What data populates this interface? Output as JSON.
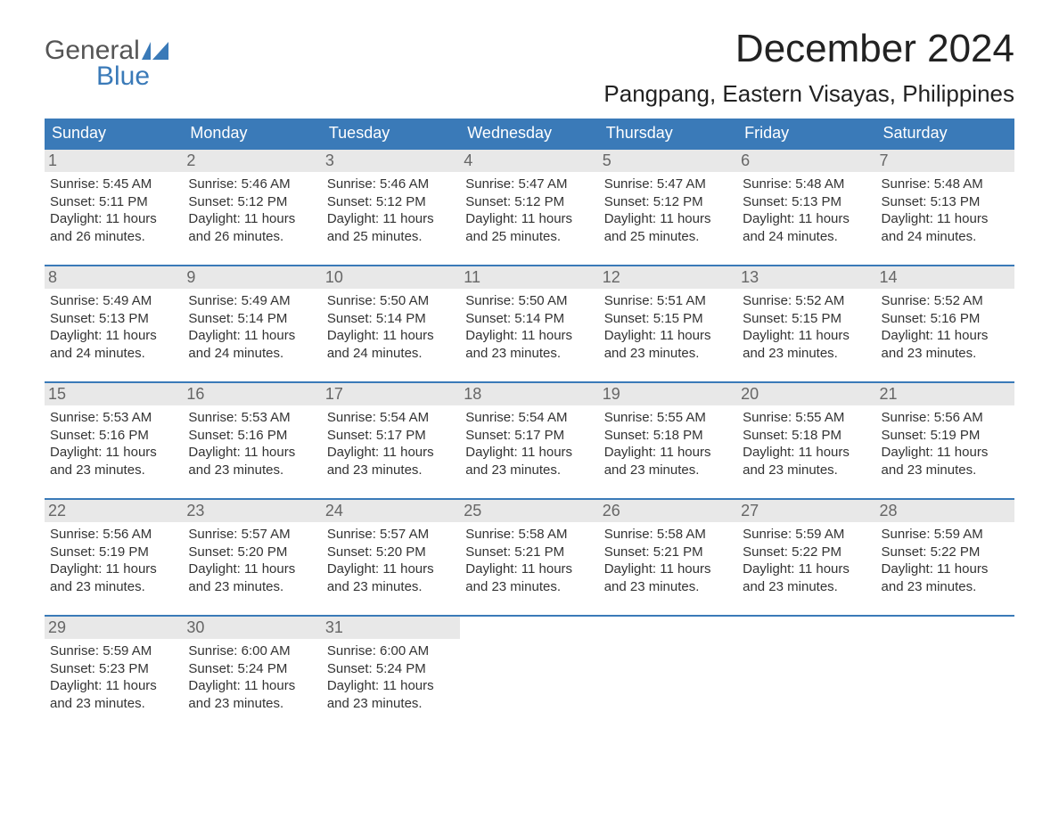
{
  "logo": {
    "line1": "General",
    "line2": "Blue"
  },
  "title": "December 2024",
  "location": "Pangpang, Eastern Visayas, Philippines",
  "colors": {
    "header_bg": "#3a7ab8",
    "header_text": "#ffffff",
    "daynum_bg": "#e8e8e8",
    "daynum_text": "#666666",
    "body_text": "#333333",
    "row_border": "#3a7ab8",
    "logo_gray": "#555555",
    "logo_blue": "#3a7ab8",
    "page_bg": "#ffffff"
  },
  "weekdays": [
    "Sunday",
    "Monday",
    "Tuesday",
    "Wednesday",
    "Thursday",
    "Friday",
    "Saturday"
  ],
  "weeks": [
    [
      {
        "n": "1",
        "sunrise": "Sunrise: 5:45 AM",
        "sunset": "Sunset: 5:11 PM",
        "daylight": "Daylight: 11 hours and 26 minutes."
      },
      {
        "n": "2",
        "sunrise": "Sunrise: 5:46 AM",
        "sunset": "Sunset: 5:12 PM",
        "daylight": "Daylight: 11 hours and 26 minutes."
      },
      {
        "n": "3",
        "sunrise": "Sunrise: 5:46 AM",
        "sunset": "Sunset: 5:12 PM",
        "daylight": "Daylight: 11 hours and 25 minutes."
      },
      {
        "n": "4",
        "sunrise": "Sunrise: 5:47 AM",
        "sunset": "Sunset: 5:12 PM",
        "daylight": "Daylight: 11 hours and 25 minutes."
      },
      {
        "n": "5",
        "sunrise": "Sunrise: 5:47 AM",
        "sunset": "Sunset: 5:12 PM",
        "daylight": "Daylight: 11 hours and 25 minutes."
      },
      {
        "n": "6",
        "sunrise": "Sunrise: 5:48 AM",
        "sunset": "Sunset: 5:13 PM",
        "daylight": "Daylight: 11 hours and 24 minutes."
      },
      {
        "n": "7",
        "sunrise": "Sunrise: 5:48 AM",
        "sunset": "Sunset: 5:13 PM",
        "daylight": "Daylight: 11 hours and 24 minutes."
      }
    ],
    [
      {
        "n": "8",
        "sunrise": "Sunrise: 5:49 AM",
        "sunset": "Sunset: 5:13 PM",
        "daylight": "Daylight: 11 hours and 24 minutes."
      },
      {
        "n": "9",
        "sunrise": "Sunrise: 5:49 AM",
        "sunset": "Sunset: 5:14 PM",
        "daylight": "Daylight: 11 hours and 24 minutes."
      },
      {
        "n": "10",
        "sunrise": "Sunrise: 5:50 AM",
        "sunset": "Sunset: 5:14 PM",
        "daylight": "Daylight: 11 hours and 24 minutes."
      },
      {
        "n": "11",
        "sunrise": "Sunrise: 5:50 AM",
        "sunset": "Sunset: 5:14 PM",
        "daylight": "Daylight: 11 hours and 23 minutes."
      },
      {
        "n": "12",
        "sunrise": "Sunrise: 5:51 AM",
        "sunset": "Sunset: 5:15 PM",
        "daylight": "Daylight: 11 hours and 23 minutes."
      },
      {
        "n": "13",
        "sunrise": "Sunrise: 5:52 AM",
        "sunset": "Sunset: 5:15 PM",
        "daylight": "Daylight: 11 hours and 23 minutes."
      },
      {
        "n": "14",
        "sunrise": "Sunrise: 5:52 AM",
        "sunset": "Sunset: 5:16 PM",
        "daylight": "Daylight: 11 hours and 23 minutes."
      }
    ],
    [
      {
        "n": "15",
        "sunrise": "Sunrise: 5:53 AM",
        "sunset": "Sunset: 5:16 PM",
        "daylight": "Daylight: 11 hours and 23 minutes."
      },
      {
        "n": "16",
        "sunrise": "Sunrise: 5:53 AM",
        "sunset": "Sunset: 5:16 PM",
        "daylight": "Daylight: 11 hours and 23 minutes."
      },
      {
        "n": "17",
        "sunrise": "Sunrise: 5:54 AM",
        "sunset": "Sunset: 5:17 PM",
        "daylight": "Daylight: 11 hours and 23 minutes."
      },
      {
        "n": "18",
        "sunrise": "Sunrise: 5:54 AM",
        "sunset": "Sunset: 5:17 PM",
        "daylight": "Daylight: 11 hours and 23 minutes."
      },
      {
        "n": "19",
        "sunrise": "Sunrise: 5:55 AM",
        "sunset": "Sunset: 5:18 PM",
        "daylight": "Daylight: 11 hours and 23 minutes."
      },
      {
        "n": "20",
        "sunrise": "Sunrise: 5:55 AM",
        "sunset": "Sunset: 5:18 PM",
        "daylight": "Daylight: 11 hours and 23 minutes."
      },
      {
        "n": "21",
        "sunrise": "Sunrise: 5:56 AM",
        "sunset": "Sunset: 5:19 PM",
        "daylight": "Daylight: 11 hours and 23 minutes."
      }
    ],
    [
      {
        "n": "22",
        "sunrise": "Sunrise: 5:56 AM",
        "sunset": "Sunset: 5:19 PM",
        "daylight": "Daylight: 11 hours and 23 minutes."
      },
      {
        "n": "23",
        "sunrise": "Sunrise: 5:57 AM",
        "sunset": "Sunset: 5:20 PM",
        "daylight": "Daylight: 11 hours and 23 minutes."
      },
      {
        "n": "24",
        "sunrise": "Sunrise: 5:57 AM",
        "sunset": "Sunset: 5:20 PM",
        "daylight": "Daylight: 11 hours and 23 minutes."
      },
      {
        "n": "25",
        "sunrise": "Sunrise: 5:58 AM",
        "sunset": "Sunset: 5:21 PM",
        "daylight": "Daylight: 11 hours and 23 minutes."
      },
      {
        "n": "26",
        "sunrise": "Sunrise: 5:58 AM",
        "sunset": "Sunset: 5:21 PM",
        "daylight": "Daylight: 11 hours and 23 minutes."
      },
      {
        "n": "27",
        "sunrise": "Sunrise: 5:59 AM",
        "sunset": "Sunset: 5:22 PM",
        "daylight": "Daylight: 11 hours and 23 minutes."
      },
      {
        "n": "28",
        "sunrise": "Sunrise: 5:59 AM",
        "sunset": "Sunset: 5:22 PM",
        "daylight": "Daylight: 11 hours and 23 minutes."
      }
    ],
    [
      {
        "n": "29",
        "sunrise": "Sunrise: 5:59 AM",
        "sunset": "Sunset: 5:23 PM",
        "daylight": "Daylight: 11 hours and 23 minutes."
      },
      {
        "n": "30",
        "sunrise": "Sunrise: 6:00 AM",
        "sunset": "Sunset: 5:24 PM",
        "daylight": "Daylight: 11 hours and 23 minutes."
      },
      {
        "n": "31",
        "sunrise": "Sunrise: 6:00 AM",
        "sunset": "Sunset: 5:24 PM",
        "daylight": "Daylight: 11 hours and 23 minutes."
      },
      null,
      null,
      null,
      null
    ]
  ]
}
